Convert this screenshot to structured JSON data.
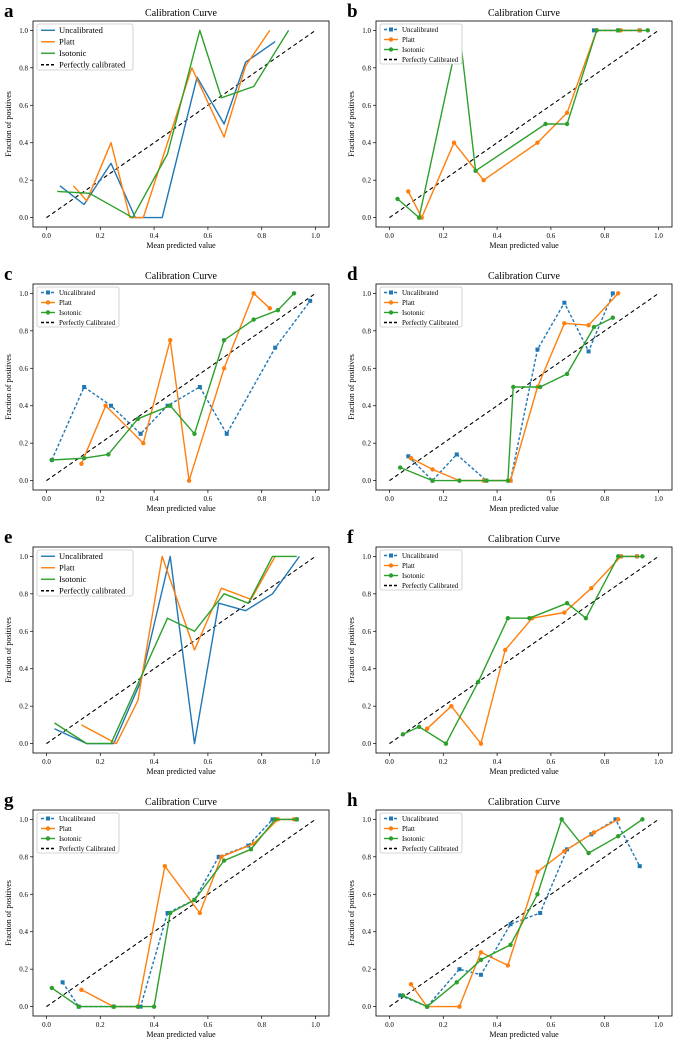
{
  "colors": {
    "uncalibrated": "#1f77b4",
    "platt": "#ff7f0e",
    "isotonic": "#2ca02c",
    "perfect": "#000000"
  },
  "chart_data": [
    {
      "panel": "a",
      "type": "line",
      "marker": false,
      "uncal_dashed": false,
      "title": "Calibration Curve",
      "xlabel": "Mean predicted value",
      "ylabel": "Fraction of positives",
      "xlim": [
        0,
        1
      ],
      "ylim": [
        0,
        1
      ],
      "xticks": [
        "0.0",
        "0.2",
        "0.4",
        "0.6",
        "0.8",
        "1.0"
      ],
      "yticks": [
        "0.0",
        "0.2",
        "0.4",
        "0.6",
        "0.8",
        "1.0"
      ],
      "legend": [
        "Uncalibrated",
        "Platt",
        "Isotonic",
        "Perfectly calibrated"
      ],
      "series": [
        {
          "name": "Uncalibrated",
          "x": [
            0.05,
            0.14,
            0.24,
            0.33,
            0.43,
            0.56,
            0.66,
            0.74,
            0.85
          ],
          "y": [
            0.17,
            0.07,
            0.29,
            0.0,
            0.0,
            0.75,
            0.5,
            0.83,
            0.94
          ]
        },
        {
          "name": "Platt",
          "x": [
            0.1,
            0.15,
            0.24,
            0.31,
            0.36,
            0.54,
            0.66,
            0.74,
            0.83
          ],
          "y": [
            0.17,
            0.09,
            0.4,
            0.0,
            0.0,
            0.8,
            0.43,
            0.81,
            1.0
          ]
        },
        {
          "name": "Isotonic",
          "x": [
            0.04,
            0.16,
            0.32,
            0.45,
            0.57,
            0.65,
            0.77,
            0.9
          ],
          "y": [
            0.14,
            0.13,
            0.0,
            0.34,
            1.0,
            0.64,
            0.7,
            1.0
          ]
        }
      ]
    },
    {
      "panel": "b",
      "type": "line",
      "marker": true,
      "uncal_dashed": true,
      "title": "Calibration Curve",
      "xlabel": "Mean predicted value",
      "ylabel": "Fraction of positives",
      "xlim": [
        0,
        1
      ],
      "ylim": [
        0,
        1
      ],
      "xticks": [
        "0.0",
        "0.2",
        "0.4",
        "0.6",
        "0.8",
        "1.0"
      ],
      "yticks": [
        "0.0",
        "0.2",
        "0.4",
        "0.6",
        "0.8",
        "1.0"
      ],
      "legend": [
        "Uncalibrated",
        "Platt",
        "Isotonic",
        "Perfectly Calibrated"
      ],
      "series": [
        {
          "name": "Uncalibrated",
          "x": [
            0.76,
            0.85,
            0.93
          ],
          "y": [
            1.0,
            1.0,
            1.0
          ]
        },
        {
          "name": "Platt",
          "x": [
            0.07,
            0.12,
            0.24,
            0.35,
            0.55,
            0.66,
            0.77,
            0.86,
            0.93
          ],
          "y": [
            0.14,
            0.0,
            0.4,
            0.2,
            0.4,
            0.56,
            1.0,
            1.0,
            1.0
          ]
        },
        {
          "name": "Isotonic",
          "x": [
            0.03,
            0.11,
            0.26,
            0.32,
            0.58,
            0.66,
            0.77,
            0.85,
            0.96
          ],
          "y": [
            0.1,
            0.0,
            1.0,
            0.25,
            0.5,
            0.5,
            1.0,
            1.0,
            1.0
          ]
        }
      ]
    },
    {
      "panel": "c",
      "type": "line",
      "marker": true,
      "uncal_dashed": true,
      "title": "Calibration Curve",
      "xlabel": "Mean predicted value",
      "ylabel": "Fraction of positives",
      "xlim": [
        0,
        1
      ],
      "ylim": [
        0,
        1
      ],
      "xticks": [
        "0.0",
        "0.2",
        "0.4",
        "0.6",
        "0.8",
        "1.0"
      ],
      "yticks": [
        "0.0",
        "0.2",
        "0.4",
        "0.6",
        "0.8",
        "1.0"
      ],
      "legend": [
        "Uncalibrated",
        "Platt",
        "Isotonic",
        "Perfectly Calibrated"
      ],
      "series": [
        {
          "name": "Uncalibrated",
          "x": [
            0.02,
            0.14,
            0.24,
            0.35,
            0.45,
            0.57,
            0.67,
            0.85,
            0.98
          ],
          "y": [
            0.11,
            0.5,
            0.4,
            0.25,
            0.4,
            0.5,
            0.25,
            0.71,
            0.96
          ]
        },
        {
          "name": "Platt",
          "x": [
            0.13,
            0.22,
            0.36,
            0.46,
            0.53,
            0.66,
            0.77,
            0.83
          ],
          "y": [
            0.09,
            0.4,
            0.2,
            0.75,
            0.0,
            0.6,
            1.0,
            0.92
          ]
        },
        {
          "name": "Isotonic",
          "x": [
            0.02,
            0.14,
            0.23,
            0.34,
            0.46,
            0.55,
            0.66,
            0.77,
            0.86,
            0.92
          ],
          "y": [
            0.11,
            0.12,
            0.14,
            0.33,
            0.4,
            0.25,
            0.75,
            0.86,
            0.91,
            1.0
          ]
        }
      ]
    },
    {
      "panel": "d",
      "type": "line",
      "marker": true,
      "uncal_dashed": true,
      "title": "Calibration Curve",
      "xlabel": "Mean predicted value",
      "ylabel": "Fraction of positives",
      "xlim": [
        0,
        1
      ],
      "ylim": [
        0,
        1
      ],
      "xticks": [
        "0.0",
        "0.2",
        "0.4",
        "0.6",
        "0.8",
        "1.0"
      ],
      "yticks": [
        "0.0",
        "0.2",
        "0.4",
        "0.6",
        "0.8",
        "1.0"
      ],
      "legend": [
        "Uncalibrated",
        "Platt",
        "Isotonic",
        "Perfectly Calibrated"
      ],
      "series": [
        {
          "name": "Uncalibrated",
          "x": [
            0.07,
            0.16,
            0.25,
            0.36,
            0.45,
            0.55,
            0.65,
            0.74,
            0.83
          ],
          "y": [
            0.13,
            0.0,
            0.14,
            0.0,
            0.0,
            0.7,
            0.95,
            0.69,
            1.0
          ]
        },
        {
          "name": "Platt",
          "x": [
            0.08,
            0.16,
            0.26,
            0.35,
            0.45,
            0.55,
            0.65,
            0.74,
            0.85
          ],
          "y": [
            0.12,
            0.06,
            0.0,
            0.0,
            0.0,
            0.5,
            0.84,
            0.83,
            1.0
          ]
        },
        {
          "name": "Isotonic",
          "x": [
            0.04,
            0.16,
            0.26,
            0.36,
            0.44,
            0.46,
            0.56,
            0.66,
            0.76,
            0.83
          ],
          "y": [
            0.07,
            0.0,
            0.0,
            0.0,
            0.0,
            0.5,
            0.5,
            0.57,
            0.82,
            0.87
          ]
        }
      ]
    },
    {
      "panel": "e",
      "type": "line",
      "marker": false,
      "uncal_dashed": false,
      "title": "Calibration Curve",
      "xlabel": "Mean predicted value",
      "ylabel": "Fraction of positives",
      "xlim": [
        0,
        1
      ],
      "ylim": [
        0,
        1
      ],
      "xticks": [
        "0.0",
        "0.2",
        "0.4",
        "0.6",
        "0.8",
        "1.0"
      ],
      "yticks": [
        "0.0",
        "0.2",
        "0.4",
        "0.6",
        "0.8",
        "1.0"
      ],
      "legend": [
        "Uncalibrated",
        "Platt",
        "Isotonic",
        "Perfectly calibrated"
      ],
      "series": [
        {
          "name": "Uncalibrated",
          "x": [
            0.03,
            0.15,
            0.25,
            0.35,
            0.46,
            0.55,
            0.64,
            0.74,
            0.84,
            0.94
          ],
          "y": [
            0.08,
            0.0,
            0.0,
            0.33,
            1.0,
            0.0,
            0.75,
            0.71,
            0.8,
            1.0
          ]
        },
        {
          "name": "Platt",
          "x": [
            0.13,
            0.26,
            0.34,
            0.43,
            0.55,
            0.65,
            0.76,
            0.85
          ],
          "y": [
            0.1,
            0.0,
            0.23,
            1.0,
            0.5,
            0.83,
            0.77,
            1.0
          ]
        },
        {
          "name": "Isotonic",
          "x": [
            0.03,
            0.15,
            0.24,
            0.45,
            0.55,
            0.66,
            0.75,
            0.84,
            0.93
          ],
          "y": [
            0.11,
            0.0,
            0.0,
            0.67,
            0.6,
            0.8,
            0.75,
            1.0,
            1.0
          ]
        }
      ]
    },
    {
      "panel": "f",
      "type": "line",
      "marker": true,
      "uncal_dashed": true,
      "title": "Calibration Curve",
      "xlabel": "Mean predicted value",
      "ylabel": "Fraction of positives",
      "xlim": [
        0,
        1
      ],
      "ylim": [
        0,
        1
      ],
      "xticks": [
        "0.0",
        "0.2",
        "0.4",
        "0.6",
        "0.8",
        "1.0"
      ],
      "yticks": [
        "0.0",
        "0.2",
        "0.4",
        "0.6",
        "0.8",
        "1.0"
      ],
      "legend": [
        "Uncalibrated",
        "Platt",
        "Isotonic",
        "Perfectly Calibrated"
      ],
      "series": [
        {
          "name": "Uncalibrated",
          "x": [
            0.86,
            0.92
          ],
          "y": [
            1.0,
            1.0
          ]
        },
        {
          "name": "Platt",
          "x": [
            0.14,
            0.23,
            0.34,
            0.43,
            0.53,
            0.65,
            0.75,
            0.86,
            0.92
          ],
          "y": [
            0.08,
            0.2,
            0.0,
            0.5,
            0.67,
            0.7,
            0.83,
            1.0,
            1.0
          ]
        },
        {
          "name": "Isotonic",
          "x": [
            0.05,
            0.11,
            0.21,
            0.33,
            0.44,
            0.52,
            0.66,
            0.73,
            0.85,
            0.94
          ],
          "y": [
            0.05,
            0.09,
            0.0,
            0.33,
            0.67,
            0.67,
            0.75,
            0.67,
            1.0,
            1.0
          ]
        }
      ]
    },
    {
      "panel": "g",
      "type": "line",
      "marker": true,
      "uncal_dashed": true,
      "title": "Calibration Curve",
      "xlabel": "Mean predicted value",
      "ylabel": "Fraction of positives",
      "xlim": [
        0,
        1
      ],
      "ylim": [
        0,
        1
      ],
      "xticks": [
        "0.0",
        "0.2",
        "0.4",
        "0.6",
        "0.8",
        "1.0"
      ],
      "yticks": [
        "0.0",
        "0.2",
        "0.4",
        "0.6",
        "0.8",
        "1.0"
      ],
      "legend": [
        "Uncalibrated",
        "Platt",
        "Isotonic",
        "Perfectly Calibrated"
      ],
      "series": [
        {
          "name": "Uncalibrated",
          "x": [
            0.06,
            0.12,
            0.25,
            0.35,
            0.45,
            0.55,
            0.64,
            0.75,
            0.84,
            0.93
          ],
          "y": [
            0.13,
            0.0,
            0.0,
            0.0,
            0.5,
            0.57,
            0.8,
            0.86,
            1.0,
            1.0
          ]
        },
        {
          "name": "Platt",
          "x": [
            0.13,
            0.25,
            0.34,
            0.44,
            0.57,
            0.65,
            0.77,
            0.86,
            0.92
          ],
          "y": [
            0.09,
            0.0,
            0.0,
            0.75,
            0.5,
            0.8,
            0.87,
            1.0,
            1.0
          ]
        },
        {
          "name": "Isotonic",
          "x": [
            0.02,
            0.12,
            0.25,
            0.34,
            0.4,
            0.46,
            0.55,
            0.66,
            0.76,
            0.85,
            0.93
          ],
          "y": [
            0.1,
            0.0,
            0.0,
            0.0,
            0.0,
            0.5,
            0.57,
            0.78,
            0.84,
            1.0,
            1.0
          ]
        }
      ]
    },
    {
      "panel": "h",
      "type": "line",
      "marker": true,
      "uncal_dashed": true,
      "title": "Calibration Curve",
      "xlabel": "Mean predicted value",
      "ylabel": "Fraction of positives",
      "xlim": [
        0,
        1
      ],
      "ylim": [
        0,
        1
      ],
      "xticks": [
        "0.0",
        "0.2",
        "0.4",
        "0.6",
        "0.8",
        "1.0"
      ],
      "yticks": [
        "0.0",
        "0.2",
        "0.4",
        "0.6",
        "0.8",
        "1.0"
      ],
      "legend": [
        "Uncalibrated",
        "Platt",
        "Isotonic",
        "Perfectly Calibrated"
      ],
      "series": [
        {
          "name": "Uncalibrated",
          "x": [
            0.04,
            0.14,
            0.26,
            0.34,
            0.45,
            0.56,
            0.66,
            0.75,
            0.84,
            0.93
          ],
          "y": [
            0.06,
            0.0,
            0.2,
            0.17,
            0.44,
            0.5,
            0.84,
            0.92,
            1.0,
            0.75
          ]
        },
        {
          "name": "Platt",
          "x": [
            0.08,
            0.14,
            0.26,
            0.34,
            0.44,
            0.55,
            0.65,
            0.76,
            0.85
          ],
          "y": [
            0.12,
            0.0,
            0.0,
            0.29,
            0.22,
            0.72,
            0.83,
            0.93,
            1.0
          ]
        },
        {
          "name": "Isotonic",
          "x": [
            0.05,
            0.14,
            0.25,
            0.34,
            0.45,
            0.55,
            0.64,
            0.74,
            0.85,
            0.94
          ],
          "y": [
            0.06,
            0.0,
            0.13,
            0.25,
            0.33,
            0.6,
            1.0,
            0.82,
            0.91,
            1.0
          ]
        }
      ]
    }
  ]
}
